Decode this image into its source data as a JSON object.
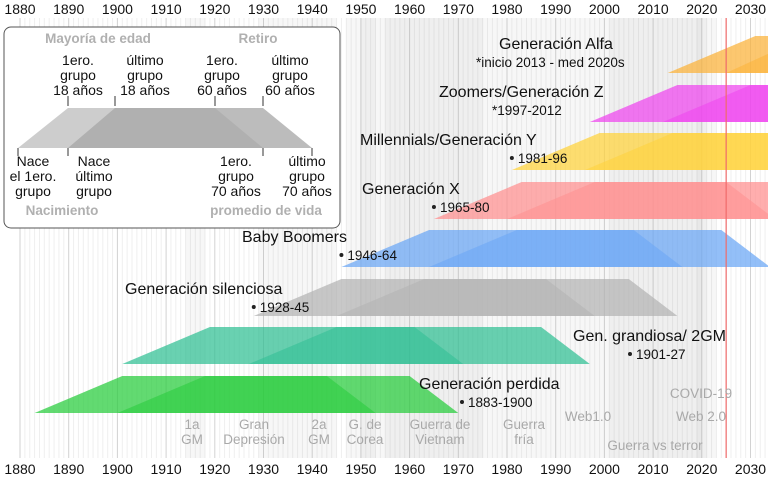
{
  "chart_data": {
    "type": "timeline",
    "title": "",
    "axis": {
      "range": [
        1880,
        2035
      ],
      "ticks": [
        1880,
        1890,
        1900,
        1910,
        1920,
        1930,
        1940,
        1950,
        1960,
        1970,
        1980,
        1990,
        2000,
        2010,
        2020,
        2030
      ],
      "current_year_marker": 2025
    },
    "generations": [
      {
        "name": "Generación Alfa",
        "note": "*inicio 2013 - med 2020s",
        "start": 2013,
        "end": 2025,
        "color": "#fbb238"
      },
      {
        "name": "Zoomers/Generación Z",
        "note": "*1997-2012",
        "start": 1997,
        "end": 2012,
        "color": "#ee44ee"
      },
      {
        "name": "Millennials/Generación Y",
        "note": "1981-96",
        "start": 1981,
        "end": 1996,
        "color": "#ffd23a"
      },
      {
        "name": "Generación X",
        "note": "1965-80",
        "start": 1965,
        "end": 1980,
        "color": "#ff8f8f"
      },
      {
        "name": "Baby Boomers",
        "note": "1946-64",
        "start": 1946,
        "end": 1964,
        "color": "#6aa6f5"
      },
      {
        "name": "Generación silenciosa",
        "note": "1928-45",
        "start": 1928,
        "end": 1945,
        "color": "#b3b3b3"
      },
      {
        "name": "Gen. grandiosa/ 2GM",
        "note": "1901-27",
        "start": 1901,
        "end": 1927,
        "color": "#2fbf93"
      },
      {
        "name": "Generación perdida",
        "note": "1883-1900",
        "start": 1883,
        "end": 1900,
        "color": "#26cc3a"
      }
    ],
    "legend": {
      "top_labels": [
        "Mayoría de edad",
        "Retiro"
      ],
      "bottom_labels": [
        "Nacimiento",
        "promedio de vida"
      ],
      "upper_captions": [
        "1ero.\ngrupo\n18 años",
        "último\ngrupo\n18 años",
        "1ero.\ngrupo\n60 años",
        "último\ngrupo\n60 años"
      ],
      "lower_captions": [
        "Nace\nel 1ero.\ngrupo",
        "Nace\núltimo\ngrupo",
        "1ero.\ngrupo\n70 años",
        "último\ngrupo\n70 años"
      ]
    },
    "events": [
      {
        "label": "1a\nGM",
        "start": 1914,
        "end": 1918
      },
      {
        "label": "Gran\nDepresión",
        "start": 1929,
        "end": 1939
      },
      {
        "label": "2a\nGM",
        "start": 1939,
        "end": 1945
      },
      {
        "label": "G. de\nCorea",
        "start": 1950,
        "end": 1953
      },
      {
        "label": "Guerra de\nVietnam",
        "start": 1955,
        "end": 1975
      },
      {
        "label": "Guerra\nfría",
        "start": 1947,
        "end": 1991
      },
      {
        "label": "Web1.0",
        "start": 1991,
        "end": 2004
      },
      {
        "label": "Web 2.0",
        "start": 2004,
        "end": 2020
      },
      {
        "label": "COVID-19",
        "start": 2019,
        "end": 2023
      },
      {
        "label": "Guerra vs terror",
        "start": 2001,
        "end": 2021
      }
    ]
  }
}
